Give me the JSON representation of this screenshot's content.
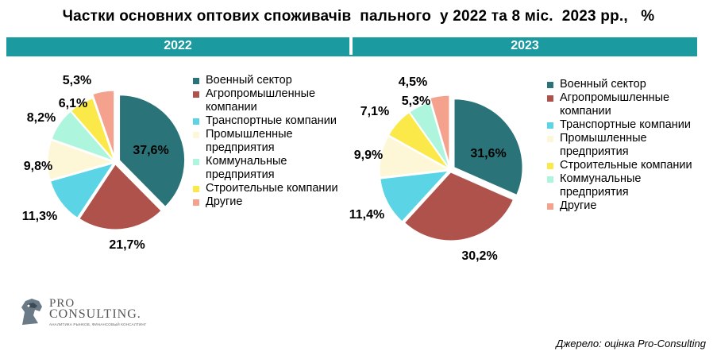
{
  "title": "Частки основних оптових споживачів  пального  у 2022 та 8 міс.  2023 рр.,   %",
  "source": "Джерело:   оцінка Pro-Consulting",
  "logo": {
    "pro": "PRO",
    "consulting": "CONSULTING.",
    "tagline": "АНАЛИТИКА РЫНКОВ, ФИНАНСОВЫЙ КОНСАЛТИНГ"
  },
  "colors": {
    "bar": "#1b9aa0",
    "military": "#2a7479",
    "agro": "#b0524c",
    "transport": "#5bd5e6",
    "industrial": "#fdf7d8",
    "communal": "#adf5dd",
    "construction": "#fbe94a",
    "other": "#f4a28d"
  },
  "chart_data": [
    {
      "type": "pie",
      "title": "2022",
      "categories": [
        "Военный сектор",
        "Агропромышленные компании",
        "Транспортные компании",
        "Промышленные предприятия",
        "Коммунальные предприятия",
        "Строительные компании",
        "Другие"
      ],
      "values": [
        37.6,
        21.7,
        11.3,
        9.8,
        8.2,
        6.1,
        5.3
      ],
      "value_labels": [
        "37,6%",
        "21,7%",
        "11,3%",
        "9,8%",
        "8,2%",
        "6,1%",
        "5,3%"
      ],
      "colors": [
        "#2a7479",
        "#b0524c",
        "#5bd5e6",
        "#fdf7d8",
        "#adf5dd",
        "#fbe94a",
        "#f4a28d"
      ],
      "exploded": true,
      "legend": "right"
    },
    {
      "type": "pie",
      "title": "2023",
      "categories": [
        "Военный сектор",
        "Агропромышленные компании",
        "Транспортные компании",
        "Промышленные предприятия",
        "Строительные компании",
        "Коммунальные предприятия",
        "Другие"
      ],
      "values": [
        31.6,
        30.2,
        11.4,
        9.9,
        7.1,
        5.3,
        4.5
      ],
      "value_labels": [
        "31,6%",
        "30,2%",
        "11,4%",
        "9,9%",
        "7,1%",
        "5,3%",
        "4,5%"
      ],
      "colors": [
        "#2a7479",
        "#b0524c",
        "#5bd5e6",
        "#fdf7d8",
        "#fbe94a",
        "#adf5dd",
        "#f4a28d"
      ],
      "exploded": true,
      "legend": "right"
    }
  ]
}
